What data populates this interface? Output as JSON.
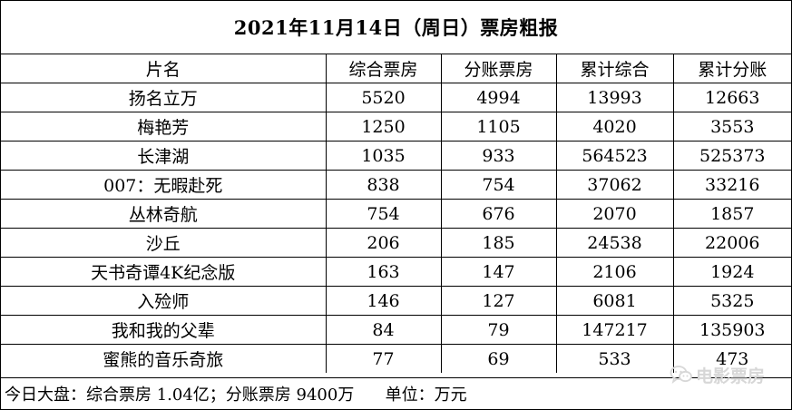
{
  "report": {
    "title": "2021年11月14日（周日）票房粗报",
    "columns": [
      "片名",
      "综合票房",
      "分账票房",
      "累计综合",
      "累计分账"
    ],
    "rows": [
      [
        "扬名立万",
        "5520",
        "4994",
        "13993",
        "12663"
      ],
      [
        "梅艳芳",
        "1250",
        "1105",
        "4020",
        "3553"
      ],
      [
        "长津湖",
        "1035",
        "933",
        "564523",
        "525373"
      ],
      [
        "007：无暇赴死",
        "838",
        "754",
        "37062",
        "33216"
      ],
      [
        "丛林奇航",
        "754",
        "676",
        "2070",
        "1857"
      ],
      [
        "沙丘",
        "206",
        "185",
        "24538",
        "22006"
      ],
      [
        "天书奇谭4K纪念版",
        "163",
        "147",
        "2106",
        "1924"
      ],
      [
        "入殓师",
        "146",
        "127",
        "6081",
        "5325"
      ],
      [
        "我和我的父辈",
        "84",
        "79",
        "147217",
        "135903"
      ],
      [
        "蜜熊的音乐奇旅",
        "77",
        "69",
        "533",
        "473"
      ]
    ],
    "footer": "今日大盘：综合票房 1.04亿；分账票房 9400万      单位：万元"
  },
  "watermark": {
    "icon": "wechat-icon",
    "text": "电影票房",
    "color": "#d7d7d7"
  }
}
